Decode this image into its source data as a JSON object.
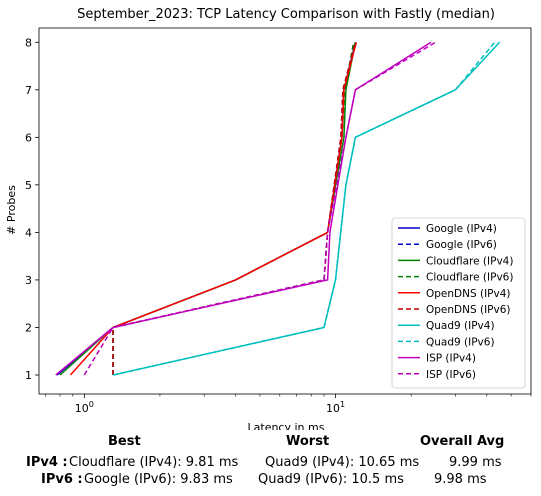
{
  "chart_data": {
    "type": "line",
    "title": "September_2023: TCP Latency Comparison with Fastly (median)",
    "xlabel": "Latency in ms",
    "ylabel": "# Probes",
    "xscale": "log",
    "xlim": [
      0.66,
      60
    ],
    "ylim": [
      0.6,
      8.3
    ],
    "xticks": [
      {
        "value": 1,
        "label": "10^0"
      },
      {
        "value": 10,
        "label": "10^1"
      }
    ],
    "yticks": [
      1,
      2,
      3,
      4,
      5,
      6,
      7,
      8
    ],
    "grid": false,
    "legend_position": "bottom-right",
    "series": [
      {
        "name": "Google (IPv4)",
        "color": "#0000cc",
        "dash": "solid",
        "points": [
          [
            0.78,
            1
          ],
          [
            1.3,
            2
          ],
          [
            4.0,
            3
          ],
          [
            9.3,
            4
          ],
          [
            10.6,
            6
          ],
          [
            10.8,
            7
          ],
          [
            12.0,
            8
          ]
        ]
      },
      {
        "name": "Google (IPv6)",
        "color": "#0000cc",
        "dash": "dashed",
        "points": [
          [
            1.3,
            1
          ],
          [
            1.3,
            2
          ],
          [
            9.0,
            3
          ],
          [
            9.3,
            4
          ],
          [
            10.5,
            6
          ],
          [
            10.7,
            7
          ],
          [
            12.0,
            8
          ]
        ]
      },
      {
        "name": "Cloudflare (IPv4)",
        "color": "#008000",
        "dash": "solid",
        "points": [
          [
            0.8,
            1
          ],
          [
            1.3,
            2
          ],
          [
            4.0,
            3
          ],
          [
            9.3,
            4
          ],
          [
            10.8,
            6
          ],
          [
            11.0,
            7
          ],
          [
            12.0,
            8
          ]
        ]
      },
      {
        "name": "Cloudflare (IPv6)",
        "color": "#008000",
        "dash": "dashed",
        "points": [
          [
            1.3,
            1
          ],
          [
            1.3,
            2
          ],
          [
            9.0,
            3
          ],
          [
            9.3,
            4
          ],
          [
            10.6,
            6
          ],
          [
            10.9,
            7
          ],
          [
            11.8,
            8
          ]
        ]
      },
      {
        "name": "OpenDNS (IPv4)",
        "color": "#ff0000",
        "dash": "solid",
        "points": [
          [
            0.88,
            1
          ],
          [
            1.3,
            2
          ],
          [
            4.0,
            3
          ],
          [
            9.3,
            4
          ],
          [
            10.6,
            6
          ],
          [
            10.8,
            7
          ],
          [
            12.1,
            8
          ]
        ]
      },
      {
        "name": "OpenDNS (IPv6)",
        "color": "#cc0000",
        "dash": "dashed",
        "points": [
          [
            1.3,
            1
          ],
          [
            1.3,
            2
          ],
          [
            9.0,
            3
          ],
          [
            9.3,
            4
          ],
          [
            10.5,
            6
          ],
          [
            10.7,
            7
          ],
          [
            12.0,
            8
          ]
        ]
      },
      {
        "name": "Quad9 (IPv4)",
        "color": "#00bfbf",
        "dash": "solid",
        "points": [
          [
            1.3,
            1
          ],
          [
            9.0,
            2
          ],
          [
            10.0,
            3
          ],
          [
            11.0,
            5
          ],
          [
            12.0,
            6
          ],
          [
            30.0,
            7
          ],
          [
            45.0,
            8
          ]
        ]
      },
      {
        "name": "Quad9 (IPv6)",
        "color": "#00bfbf",
        "dash": "dashed",
        "points": [
          [
            1.3,
            1
          ],
          [
            9.0,
            2
          ],
          [
            10.0,
            3
          ],
          [
            11.0,
            5
          ],
          [
            12.0,
            6
          ],
          [
            30.0,
            7
          ],
          [
            43.0,
            8
          ]
        ]
      },
      {
        "name": "ISP (IPv4)",
        "color": "#bf00bf",
        "dash": "solid",
        "points": [
          [
            0.77,
            1
          ],
          [
            1.3,
            2
          ],
          [
            9.3,
            3
          ],
          [
            9.5,
            4
          ],
          [
            11.0,
            6
          ],
          [
            12.0,
            7
          ],
          [
            24.0,
            8
          ]
        ]
      },
      {
        "name": "ISP (IPv6)",
        "color": "#bf00bf",
        "dash": "dashed",
        "points": [
          [
            1.0,
            1
          ],
          [
            1.3,
            2
          ],
          [
            9.0,
            3
          ],
          [
            9.3,
            4
          ],
          [
            11.0,
            6
          ],
          [
            12.0,
            7
          ],
          [
            25.0,
            8
          ]
        ]
      }
    ]
  },
  "summary": {
    "headers": {
      "best": "Best",
      "worst": "Worst",
      "avg": "Overall Avg"
    },
    "rows": [
      {
        "label": "IPv4 :",
        "best": "Cloudflare (IPv4): 9.81 ms",
        "worst": "Quad9 (IPv4): 10.65 ms",
        "avg": "9.99 ms"
      },
      {
        "label": "IPv6 :",
        "best": "Google (IPv6): 9.83 ms",
        "worst": "Quad9 (IPv6): 10.5 ms",
        "avg": "9.98 ms"
      }
    ]
  }
}
